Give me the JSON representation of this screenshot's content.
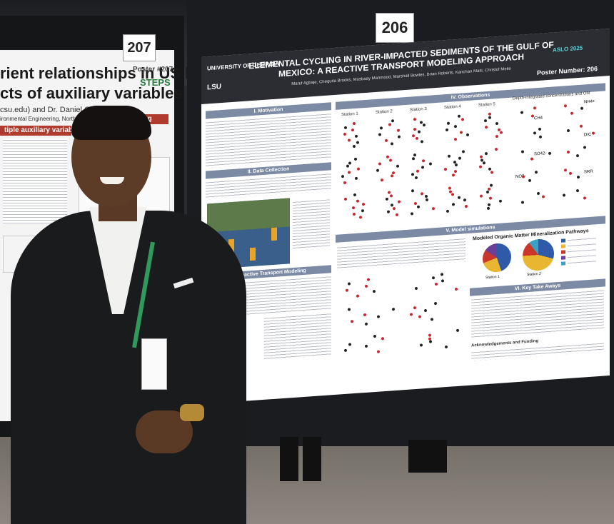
{
  "left_poster": {
    "card_number": "207",
    "title_line1": "rient relationships in US lakes",
    "title_line2": "cts of auxiliary variables",
    "poster_no": "Poster #207",
    "steps": "STEPS",
    "affiliation_line1": "csu.edu) and Dr. Daniel Obenour",
    "affiliation_line2": "ironmental Engineering, North Carolina State University",
    "bar_left": "tiple auxiliary variables (MAV)",
    "bar_right": "Nutrient mapping"
  },
  "main_poster": {
    "card_number": "206",
    "title": "ELEMENTAL CYCLING IN RIVER-IMPACTED SEDIMENTS OF THE GULF OF MEXICO: A REACTIVE TRANSPORT MODELING APPROACH",
    "authors": "Maruf Agbaje, Chequita Brooks, Musbaay Mahmood, Marshall Bowles, Brian Roberts, Kanchan Maiti, Christof Meile",
    "poster_number": "Poster Number: 206",
    "logo_left": "UNIVERSITY OF GEORGIA",
    "logo_lsu": "LSU",
    "logo_right": "ASLO 2025",
    "sections": {
      "motivation": "I. Motivation",
      "data_collection": "II. Data Collection",
      "reactive_transport": "III. Reactive Transport Modeling",
      "observations": "IV. Observations",
      "model_simulations": "V. Model simulations",
      "key_takeaways": "VI. Key Take Aways",
      "acknowledgements": "Acknowledgements and Funding"
    },
    "observation_stations": [
      "Station 1",
      "Station 2",
      "Station 3",
      "Station 4",
      "Station 5"
    ],
    "depth_integrated_label": "Depth-integrated concentrations and OM",
    "species_labels": [
      "NH4+",
      "CH4",
      "DIC",
      "SO42-",
      "NO3-",
      "SRR"
    ],
    "pie_title": "Modeled Organic Matter Mineralization Pathways",
    "pie_station_labels": [
      "Station 1",
      "Station 2"
    ],
    "pie_colors": [
      "#2f5aa8",
      "#e9b632",
      "#c9372c",
      "#6a3e99",
      "#3aa0c4"
    ],
    "series_colors": {
      "observed": "#c8262c",
      "model": "#222222"
    }
  }
}
